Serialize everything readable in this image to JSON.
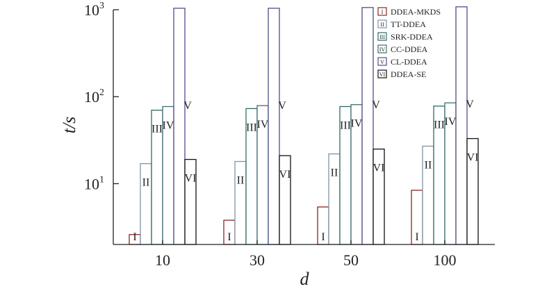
{
  "chart_data": {
    "type": "bar",
    "xlabel": "d",
    "ylabel": "t/s",
    "yscale": "log",
    "ylim": [
      2,
      1000
    ],
    "yticks": [
      {
        "value": 10,
        "base": "10",
        "exp": "1"
      },
      {
        "value": 100,
        "base": "10",
        "exp": "2"
      },
      {
        "value": 1000,
        "base": "10",
        "exp": "3"
      }
    ],
    "categories": [
      "10",
      "30",
      "50",
      "100"
    ],
    "legend_position": "top-right",
    "series": [
      {
        "name": "DDEA-MKDS",
        "marker": "I",
        "color": "#8b2323",
        "values": [
          2.6,
          3.8,
          5.4,
          8.4
        ]
      },
      {
        "name": "TT-DDEA",
        "marker": "II",
        "color": "#7d93a7",
        "values": [
          17,
          18,
          22,
          27
        ]
      },
      {
        "name": "SRK-DDEA",
        "marker": "III",
        "color": "#2f6a63",
        "values": [
          70,
          73,
          77,
          78
        ]
      },
      {
        "name": "CC-DDEA",
        "marker": "IV",
        "color": "#3f6e72",
        "values": [
          77,
          79,
          81,
          85
        ]
      },
      {
        "name": "CL-DDEA",
        "marker": "V",
        "color": "#4b4f8a",
        "values": [
          1040,
          1040,
          1060,
          1080
        ]
      },
      {
        "name": "DDEA-SE",
        "marker": "VI",
        "color": "#111111",
        "values": [
          19,
          21,
          25,
          33
        ]
      }
    ]
  }
}
